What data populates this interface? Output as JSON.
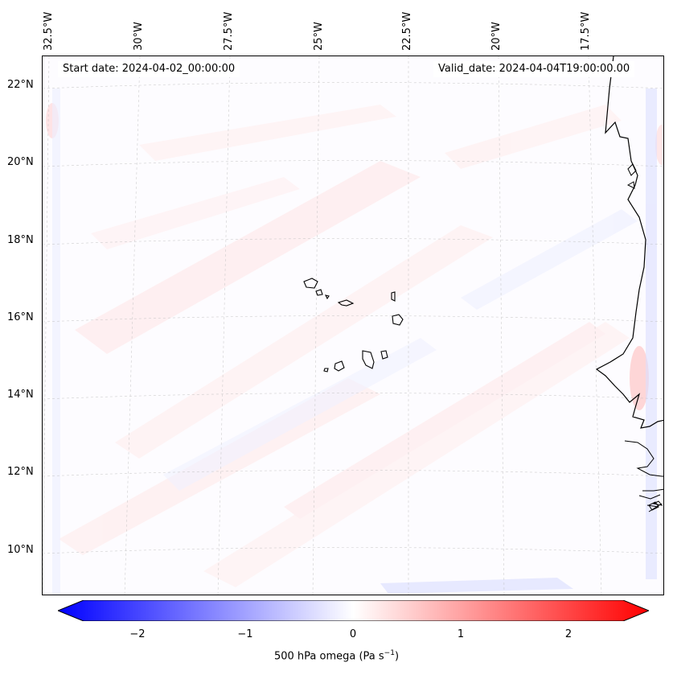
{
  "map": {
    "lon_labels": [
      "32.5°W",
      "30°W",
      "27.5°W",
      "25°W",
      "22.5°W",
      "20°W",
      "17.5°W"
    ],
    "lat_labels": [
      "22°N",
      "20°N",
      "18°N",
      "16°N",
      "14°N",
      "12°N",
      "10°N"
    ],
    "start_date": "Start date: 2024-04-02_00:00:00",
    "valid_date": "Valid_date: 2024-04-04T19:00:00.00",
    "gridlines": true,
    "variable": "500 hPa omega"
  },
  "colorbar": {
    "ticks": [
      "−2",
      "−1",
      "0",
      "1",
      "2"
    ],
    "label": "500 hPa omega (Pa s",
    "label_sup": "−1",
    "label_end": ")",
    "range": [
      -2.5,
      2.5
    ],
    "colors": {
      "min": "#0000ff",
      "mid": "#ffffff",
      "max": "#ff0000"
    }
  }
}
